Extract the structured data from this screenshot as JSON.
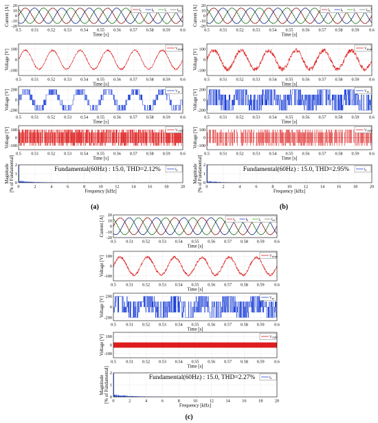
{
  "panel_labels": [
    "(a)",
    "(b)",
    "(c)"
  ],
  "chart_data": [
    {
      "panel": "(a)",
      "row": "current",
      "type": "line",
      "xlabel": "Time [s]",
      "ylabel": "Current [A]",
      "xlim": [
        0.5,
        0.6
      ],
      "ylim": [
        -20,
        20
      ],
      "xticks": [
        "0.5",
        "0.51",
        "0.52",
        "0.53",
        "0.54",
        "0.55",
        "0.56",
        "0.57",
        "0.58",
        "0.59",
        "0.6"
      ],
      "yticks": [
        "-20",
        "-10",
        "0",
        "10",
        "20"
      ],
      "grid": true,
      "legend": "top-right",
      "signal": {
        "kind": "three_phase",
        "amplitude": 15,
        "frequency_hz": 60,
        "ref_amplitude": 15
      },
      "series": [
        {
          "name": "I_a",
          "color": "#dd1c1c"
        },
        {
          "name": "I_b",
          "color": "#1a3fd6"
        },
        {
          "name": "I_c",
          "color": "#2fb82f"
        },
        {
          "name": "I_ref",
          "color": "#000000"
        }
      ]
    },
    {
      "panel": "(a)",
      "row": "vload",
      "type": "line",
      "xlabel": "Time [s]",
      "ylabel": "Voltage [V]",
      "xlim": [
        0.5,
        0.6
      ],
      "ylim": [
        -150,
        150
      ],
      "xticks": [
        "0.5",
        "0.51",
        "0.52",
        "0.53",
        "0.54",
        "0.55",
        "0.56",
        "0.57",
        "0.58",
        "0.59",
        "0.6"
      ],
      "yticks": [
        "-100",
        "0",
        "100"
      ],
      "grid": true,
      "legend": "top-right",
      "signal": {
        "kind": "sine_noise",
        "amplitude": 90,
        "frequency_hz": 60,
        "noise": 8
      },
      "series": [
        {
          "name": "V_aload",
          "color": "#dd1c1c"
        }
      ]
    },
    {
      "panel": "(a)",
      "row": "vpulse",
      "type": "line",
      "xlabel": "Time [s]",
      "ylabel": "Voltage [V]",
      "xlim": [
        0.5,
        0.6
      ],
      "ylim": [
        -260,
        260
      ],
      "xticks": [
        "0.5",
        "0.51",
        "0.52",
        "0.53",
        "0.54",
        "0.55",
        "0.56",
        "0.57",
        "0.58",
        "0.59",
        "0.6"
      ],
      "yticks": [
        "-200",
        "0",
        "200"
      ],
      "grid": true,
      "legend": "top-right",
      "signal": {
        "kind": "multilevel",
        "levels": [
          0,
          100,
          200
        ],
        "frequency_hz": 60
      },
      "series": [
        {
          "name": "V_an",
          "color": "#1a3fd6"
        }
      ]
    },
    {
      "panel": "(a)",
      "row": "vcmv",
      "type": "line",
      "xlabel": "Time [s]",
      "ylabel": "Voltage [V]",
      "xlim": [
        0.5,
        0.6
      ],
      "ylim": [
        -150,
        150
      ],
      "xticks": [
        "0.5",
        "0.51",
        "0.52",
        "0.53",
        "0.54",
        "0.55",
        "0.56",
        "0.57",
        "0.58",
        "0.59",
        "0.6"
      ],
      "yticks": [
        "-100",
        "0",
        "100"
      ],
      "grid": true,
      "legend": "top-right",
      "signal": {
        "kind": "cmv",
        "amplitude": 100,
        "density": "medium"
      },
      "series": [
        {
          "name": "V_CMV",
          "color": "#dd1c1c"
        }
      ]
    },
    {
      "panel": "(a)",
      "row": "fft",
      "type": "bar",
      "xlabel": "Frequency [kHz]",
      "ylabel": "Magnitude\n[% of Fundamental]",
      "xlim": [
        0,
        20
      ],
      "ylim": [
        0,
        2
      ],
      "xticks": [
        "0",
        "2",
        "4",
        "6",
        "8",
        "10",
        "12",
        "14",
        "16",
        "18",
        "20"
      ],
      "yticks": [
        "0",
        "1",
        "2"
      ],
      "grid": true,
      "legend": "top-right",
      "annotation": "Fundamental(60Hz) : 15.0, THD=2.12%",
      "thd_percent": 2.12,
      "fundamental": 15.0,
      "signal": {
        "kind": "fft",
        "spread_khz": 4
      },
      "series": [
        {
          "name": "I_a",
          "color": "#1a3fd6"
        }
      ]
    },
    {
      "panel": "(b)",
      "row": "current",
      "type": "line",
      "xlabel": "Time [s]",
      "ylabel": "Current [A]",
      "xlim": [
        0.5,
        0.6
      ],
      "ylim": [
        -20,
        20
      ],
      "xticks": [
        "0.5",
        "0.51",
        "0.52",
        "0.53",
        "0.54",
        "0.55",
        "0.56",
        "0.57",
        "0.58",
        "0.59",
        "0.6"
      ],
      "yticks": [
        "-20",
        "-10",
        "0",
        "10",
        "20"
      ],
      "grid": true,
      "legend": "top-right",
      "signal": {
        "kind": "three_phase",
        "amplitude": 15,
        "frequency_hz": 60,
        "ref_amplitude": 15
      },
      "series": [
        {
          "name": "I_a",
          "color": "#dd1c1c"
        },
        {
          "name": "I_b",
          "color": "#1a3fd6"
        },
        {
          "name": "I_c",
          "color": "#2fb82f"
        },
        {
          "name": "I_ref",
          "color": "#000000"
        }
      ]
    },
    {
      "panel": "(b)",
      "row": "vload",
      "type": "line",
      "xlabel": "Time [s]",
      "ylabel": "Voltage [V]",
      "xlim": [
        0.5,
        0.6
      ],
      "ylim": [
        -150,
        150
      ],
      "xticks": [
        "0.5",
        "0.51",
        "0.52",
        "0.53",
        "0.54",
        "0.55",
        "0.56",
        "0.57",
        "0.58",
        "0.59",
        "0.6"
      ],
      "yticks": [
        "-100",
        "0",
        "100"
      ],
      "grid": true,
      "legend": "top-right",
      "signal": {
        "kind": "sine_noise",
        "amplitude": 90,
        "frequency_hz": 60,
        "noise": 20
      },
      "series": [
        {
          "name": "V_aload",
          "color": "#dd1c1c"
        }
      ]
    },
    {
      "panel": "(b)",
      "row": "vpulse",
      "type": "line",
      "xlabel": "Time [s]",
      "ylabel": "Voltage [V]",
      "xlim": [
        0.5,
        0.6
      ],
      "ylim": [
        -260,
        260
      ],
      "xticks": [
        "0.5",
        "0.51",
        "0.52",
        "0.53",
        "0.54",
        "0.55",
        "0.56",
        "0.57",
        "0.58",
        "0.59",
        "0.6"
      ],
      "yticks": [
        "-200",
        "0",
        "200"
      ],
      "grid": true,
      "legend": "top-right",
      "signal": {
        "kind": "multilevel",
        "levels": [
          0,
          100,
          200
        ],
        "frequency_hz": 60,
        "chaotic": true
      },
      "series": [
        {
          "name": "V_an",
          "color": "#1a3fd6"
        }
      ]
    },
    {
      "panel": "(b)",
      "row": "vcmv",
      "type": "line",
      "xlabel": "Time [s]",
      "ylabel": "Voltage [V]",
      "xlim": [
        0.5,
        0.6
      ],
      "ylim": [
        -150,
        150
      ],
      "xticks": [
        "0.5",
        "0.51",
        "0.52",
        "0.53",
        "0.54",
        "0.55",
        "0.56",
        "0.57",
        "0.58",
        "0.59",
        "0.6"
      ],
      "yticks": [
        "-100",
        "0",
        "100"
      ],
      "grid": true,
      "legend": "top-right",
      "signal": {
        "kind": "cmv",
        "amplitude": 100,
        "density": "sparse"
      },
      "series": [
        {
          "name": "V_CMV",
          "color": "#dd1c1c"
        }
      ]
    },
    {
      "panel": "(b)",
      "row": "fft",
      "type": "bar",
      "xlabel": "Frequency [kHz]",
      "ylabel": "Magnitude\n[% of Fundamental]",
      "xlim": [
        0,
        20
      ],
      "ylim": [
        0,
        2
      ],
      "xticks": [
        "0",
        "2",
        "4",
        "6",
        "8",
        "10",
        "12",
        "14",
        "16",
        "18",
        "20"
      ],
      "yticks": [
        "0",
        "1",
        "2"
      ],
      "grid": true,
      "legend": "top-right",
      "annotation": "Fundamental(60Hz) : 15.0, THD=2.95%",
      "thd_percent": 2.95,
      "fundamental": 15.0,
      "signal": {
        "kind": "fft",
        "spread_khz": 3
      },
      "series": [
        {
          "name": "I_a",
          "color": "#1a3fd6"
        }
      ]
    },
    {
      "panel": "(c)",
      "row": "current",
      "type": "line",
      "xlabel": "Time [s]",
      "ylabel": "Current [A]",
      "xlim": [
        0.5,
        0.6
      ],
      "ylim": [
        -20,
        20
      ],
      "xticks": [
        "0.5",
        "0.51",
        "0.52",
        "0.53",
        "0.54",
        "0.55",
        "0.56",
        "0.57",
        "0.58",
        "0.59",
        "0.6"
      ],
      "yticks": [
        "-20",
        "-10",
        "0",
        "10",
        "20"
      ],
      "grid": true,
      "legend": "top-right",
      "signal": {
        "kind": "three_phase",
        "amplitude": 15,
        "frequency_hz": 60,
        "ref_amplitude": 15
      },
      "series": [
        {
          "name": "I_a",
          "color": "#dd1c1c"
        },
        {
          "name": "I_b",
          "color": "#1a3fd6"
        },
        {
          "name": "I_c",
          "color": "#2fb82f"
        },
        {
          "name": "I_ref",
          "color": "#000000"
        }
      ]
    },
    {
      "panel": "(c)",
      "row": "vload",
      "type": "line",
      "xlabel": "Time [s]",
      "ylabel": "Voltage [V]",
      "xlim": [
        0.5,
        0.6
      ],
      "ylim": [
        -150,
        150
      ],
      "xticks": [
        "0.5",
        "0.51",
        "0.52",
        "0.53",
        "0.54",
        "0.55",
        "0.56",
        "0.57",
        "0.58",
        "0.59",
        "0.6"
      ],
      "yticks": [
        "-100",
        "0",
        "100"
      ],
      "grid": true,
      "legend": "top-right",
      "signal": {
        "kind": "sine_noise",
        "amplitude": 90,
        "frequency_hz": 60,
        "noise": 14
      },
      "series": [
        {
          "name": "V_aload",
          "color": "#dd1c1c"
        }
      ]
    },
    {
      "panel": "(c)",
      "row": "vpulse",
      "type": "line",
      "xlabel": "Time [s]",
      "ylabel": "Voltage [V]",
      "xlim": [
        0.5,
        0.6
      ],
      "ylim": [
        -260,
        260
      ],
      "xticks": [
        "0.5",
        "0.51",
        "0.52",
        "0.53",
        "0.54",
        "0.55",
        "0.56",
        "0.57",
        "0.58",
        "0.59",
        "0.6"
      ],
      "yticks": [
        "-200",
        "0",
        "200"
      ],
      "grid": true,
      "legend": "top-right",
      "signal": {
        "kind": "multilevel",
        "levels": [
          0,
          100,
          200
        ],
        "frequency_hz": 60,
        "chaotic": true
      },
      "series": [
        {
          "name": "V_an",
          "color": "#1a3fd6"
        }
      ]
    },
    {
      "panel": "(c)",
      "row": "vcmv",
      "type": "line",
      "xlabel": "Time [s]",
      "ylabel": "Voltage [V]",
      "xlim": [
        0.5,
        0.6
      ],
      "ylim": [
        -150,
        150
      ],
      "xticks": [
        "0.5",
        "0.51",
        "0.52",
        "0.53",
        "0.54",
        "0.55",
        "0.56",
        "0.57",
        "0.58",
        "0.59",
        "0.6"
      ],
      "yticks": [
        "-100",
        "0",
        "100"
      ],
      "grid": true,
      "legend": "top-right",
      "signal": {
        "kind": "cmv",
        "amplitude": 30,
        "density": "dense"
      },
      "series": [
        {
          "name": "V_CMV",
          "color": "#dd1c1c"
        }
      ]
    },
    {
      "panel": "(c)",
      "row": "fft",
      "type": "bar",
      "xlabel": "Frequency [kHz]",
      "ylabel": "Magnitude\n[% of Fundamental]",
      "xlim": [
        0,
        20
      ],
      "ylim": [
        0,
        2
      ],
      "xticks": [
        "0",
        "2",
        "4",
        "6",
        "8",
        "10",
        "12",
        "14",
        "16",
        "18",
        "20"
      ],
      "yticks": [
        "0",
        "1",
        "2"
      ],
      "grid": true,
      "legend": "top-right",
      "annotation": "Fundamental(60Hz) : 15.0, THD=2.27%",
      "thd_percent": 2.27,
      "fundamental": 15.0,
      "signal": {
        "kind": "fft",
        "spread_khz": 4
      },
      "series": [
        {
          "name": "I_a",
          "color": "#1a3fd6"
        }
      ]
    }
  ]
}
